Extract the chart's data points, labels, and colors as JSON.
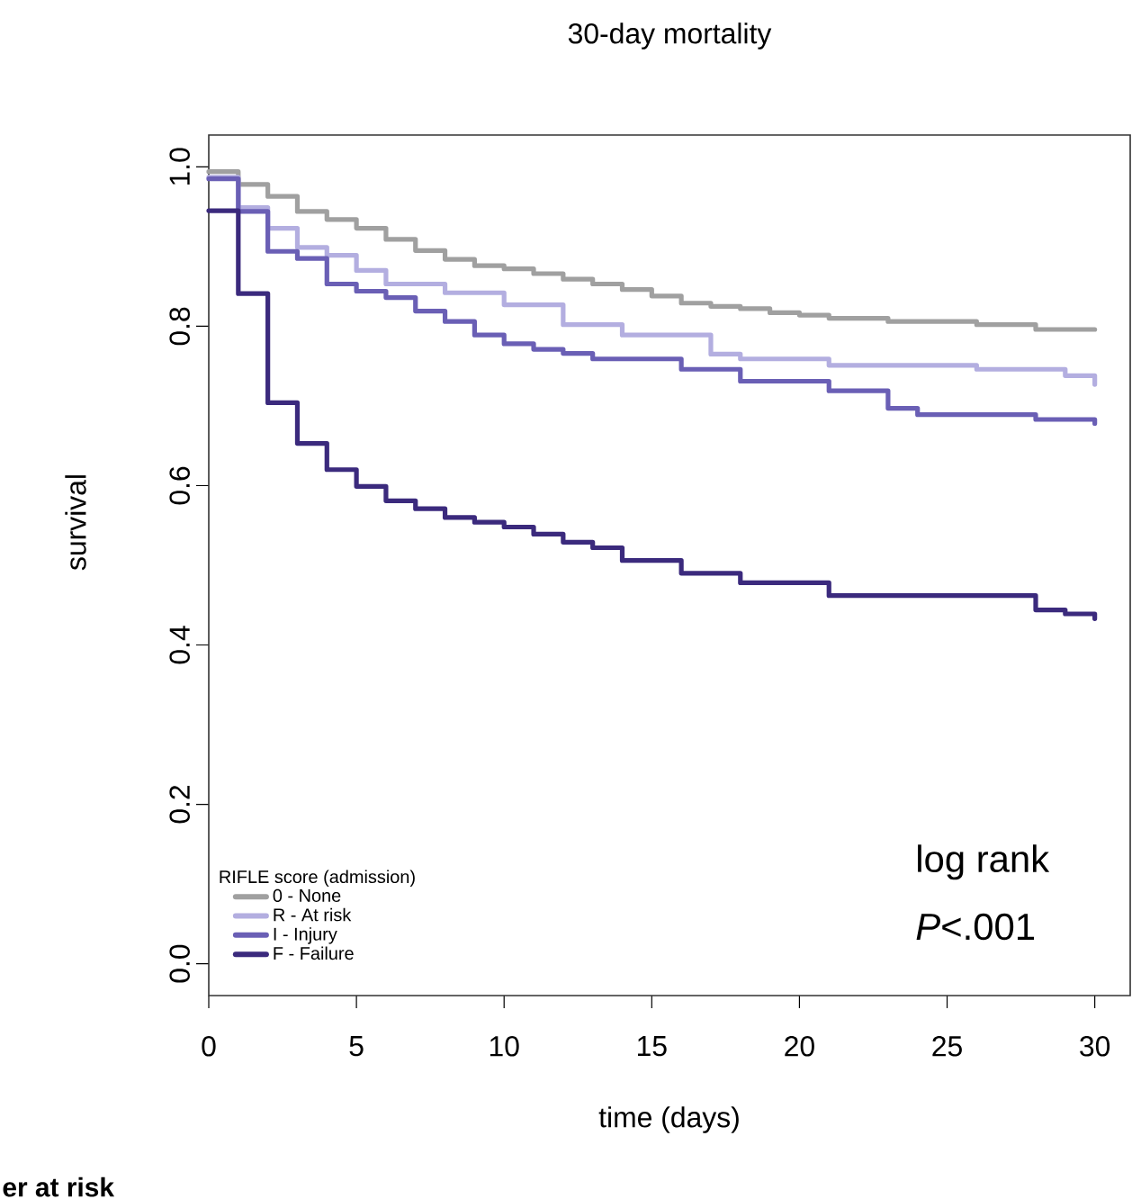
{
  "chart_data": {
    "type": "step",
    "title": "30-day mortality",
    "xlabel": "time (days)",
    "ylabel": "survival",
    "legend_title": "RIFLE score (admission)",
    "legend": "bottom left",
    "grid": false,
    "marker": "none",
    "line_style": "solid",
    "xlim": [
      0,
      31.2
    ],
    "ylim": [
      -0.04,
      1.04
    ],
    "xticks": [
      0,
      5,
      10,
      15,
      20,
      25,
      30
    ],
    "yticks": [
      {
        "value": 0,
        "label": "0.0"
      },
      0.2,
      0.4,
      0.6,
      0.8,
      {
        "value": 1,
        "label": "1.0"
      }
    ],
    "series": [
      {
        "name": "0 - None",
        "color": "#a0a0a0",
        "x": [
          0,
          1,
          2,
          3,
          4,
          5,
          6,
          7,
          8,
          9,
          10,
          11,
          12,
          13,
          14,
          15,
          16,
          17,
          18,
          19,
          20,
          21,
          23,
          26,
          28,
          30
        ],
        "values": [
          0.994,
          0.978,
          0.963,
          0.944,
          0.934,
          0.923,
          0.909,
          0.895,
          0.884,
          0.876,
          0.872,
          0.866,
          0.859,
          0.853,
          0.846,
          0.838,
          0.829,
          0.825,
          0.822,
          0.817,
          0.814,
          0.81,
          0.806,
          0.802,
          0.796,
          0.796
        ]
      },
      {
        "name": "R - At risk",
        "color": "#b3aee0",
        "x": [
          0,
          1,
          2,
          3,
          4,
          5,
          6,
          8,
          10,
          12,
          14,
          17,
          18,
          21,
          26,
          29,
          30
        ],
        "values": [
          0.987,
          0.949,
          0.923,
          0.899,
          0.889,
          0.87,
          0.853,
          0.842,
          0.827,
          0.802,
          0.789,
          0.765,
          0.759,
          0.751,
          0.746,
          0.738,
          0.727
        ]
      },
      {
        "name": "I - Injury",
        "color": "#6a5fb5",
        "x": [
          0,
          1,
          2,
          3,
          4,
          5,
          6,
          7,
          8,
          9,
          10,
          11,
          12,
          13,
          16,
          18,
          21,
          23,
          24,
          28,
          30
        ],
        "values": [
          0.985,
          0.944,
          0.894,
          0.885,
          0.853,
          0.844,
          0.836,
          0.819,
          0.806,
          0.789,
          0.778,
          0.771,
          0.766,
          0.759,
          0.746,
          0.731,
          0.719,
          0.697,
          0.689,
          0.683,
          0.678
        ]
      },
      {
        "name": "F - Failure",
        "color": "#3b2a7d",
        "x": [
          0,
          1,
          2,
          3,
          4,
          5,
          6,
          7,
          8,
          9,
          10,
          11,
          12,
          13,
          14,
          16,
          18,
          21,
          28,
          29,
          30
        ],
        "values": [
          0.945,
          0.841,
          0.704,
          0.653,
          0.62,
          0.599,
          0.581,
          0.571,
          0.56,
          0.554,
          0.548,
          0.539,
          0.529,
          0.522,
          0.506,
          0.49,
          0.478,
          0.462,
          0.444,
          0.439,
          0.433
        ]
      }
    ],
    "annotations": [
      "log rank",
      "*P*<.001",
      "er at risk"
    ]
  }
}
